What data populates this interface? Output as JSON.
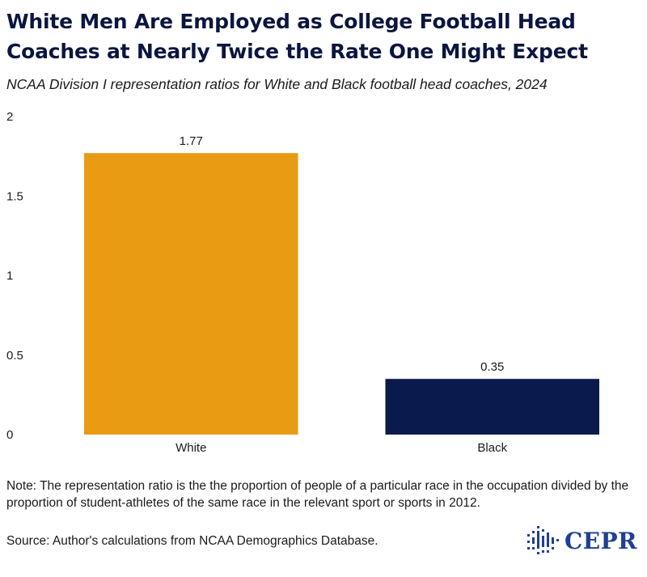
{
  "title": "White Men Are Employed as College Football Head Coaches at Nearly Twice the Rate One Might Expect",
  "subtitle": "NCAA Division I representation ratios for White and Black football head coaches, 2024",
  "note": "Note: The representation ratio is the the proportion of people of a particular race in the occupation divided by the proportion of student-athletes of the same race in the relevant sport or sports in 2012.",
  "source": "Source: Author's calculations from NCAA Demographics Database.",
  "logo": {
    "text": "CEPR",
    "icon": "cepr-logo-icon",
    "color": "#1f3f94"
  },
  "chart_data": {
    "type": "bar",
    "categories": [
      "White",
      "Black"
    ],
    "values": [
      1.77,
      0.35
    ],
    "data_labels": [
      "1.77",
      "0.35"
    ],
    "colors": [
      "#e89c13",
      "#0b1a4d"
    ],
    "yticks": [
      0,
      0.5,
      1,
      1.5,
      2
    ],
    "ytick_labels": [
      "0",
      "0.5",
      "1",
      "1.5",
      "2"
    ],
    "ylim": [
      0,
      2
    ],
    "xlabel": "",
    "ylabel": "",
    "grid": false,
    "legend": false
  }
}
